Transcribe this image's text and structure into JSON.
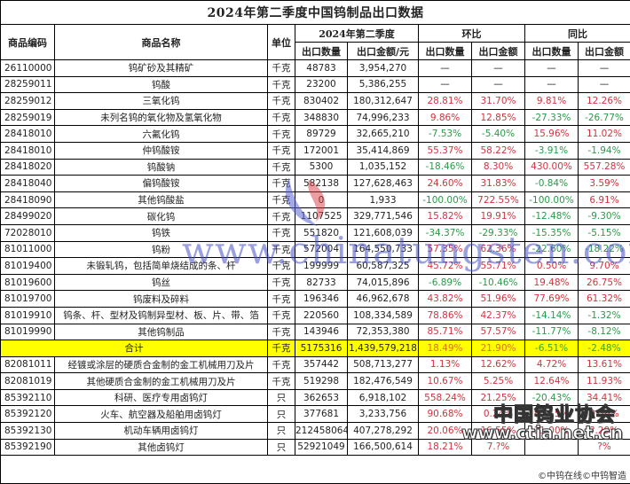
{
  "title": "2024年第二季度中国钨制品出口数据",
  "headers": {
    "code": "商品编码",
    "name": "商品名称",
    "unit": "单位",
    "period": "2024年第二季度",
    "qoq": "环比",
    "yoy": "同比",
    "export_qty": "出口数量",
    "export_amount_yuan": "出口金额/元",
    "export_amount": "出口金额"
  },
  "rows": [
    {
      "code": "26110000",
      "name": "钨矿砂及其精矿",
      "unit": "千克",
      "qty": "48783",
      "amount": "3,954,270",
      "qoq_qty": "—",
      "qoq_amt": "—",
      "yoy_qty": "—",
      "yoy_amt": "—"
    },
    {
      "code": "28259011",
      "name": "钨酸",
      "unit": "千克",
      "qty": "23200",
      "amount": "5,386,255",
      "qoq_qty": "—",
      "qoq_amt": "—",
      "yoy_qty": "—",
      "yoy_amt": "—"
    },
    {
      "code": "28259012",
      "name": "三氧化钨",
      "unit": "千克",
      "qty": "830402",
      "amount": "180,312,647",
      "qoq_qty": "28.81%",
      "qoq_amt": "31.70%",
      "yoy_qty": "9.81%",
      "yoy_amt": "12.26%"
    },
    {
      "code": "28259019",
      "name": "未列名钨的氧化物及氢氧化物",
      "unit": "千克",
      "qty": "348830",
      "amount": "74,996,233",
      "qoq_qty": "9.86%",
      "qoq_amt": "12.85%",
      "yoy_qty": "-27.33%",
      "yoy_amt": "-26.77%"
    },
    {
      "code": "28418010",
      "name": "六氟化钨",
      "unit": "千克",
      "qty": "89729",
      "amount": "32,665,210",
      "qoq_qty": "-7.53%",
      "qoq_amt": "-5.40%",
      "yoy_qty": "15.96%",
      "yoy_amt": "11.02%"
    },
    {
      "code": "28418010",
      "name": "仲钨酸铵",
      "unit": "千克",
      "qty": "172001",
      "amount": "35,414,869",
      "qoq_qty": "55.37%",
      "qoq_amt": "58.22%",
      "yoy_qty": "-3.91%",
      "yoy_amt": "-1.94%"
    },
    {
      "code": "28418020",
      "name": "钨酸钠",
      "unit": "千克",
      "qty": "5300",
      "amount": "1,035,152",
      "qoq_qty": "-18.46%",
      "qoq_amt": "8.30%",
      "yoy_qty": "430.00%",
      "yoy_amt": "557.28%"
    },
    {
      "code": "28418040",
      "name": "偏钨酸铵",
      "unit": "千克",
      "qty": "582138",
      "amount": "127,628,463",
      "qoq_qty": "24.60%",
      "qoq_amt": "31.83%",
      "yoy_qty": "-0.84%",
      "yoy_amt": "3.59%"
    },
    {
      "code": "28418090",
      "name": "其他钨酸盐",
      "unit": "千克",
      "qty": "0",
      "amount": "1,933",
      "qoq_qty": "-100.00%",
      "qoq_amt": "722.55%",
      "yoy_qty": "-100.00%",
      "yoy_amt": "6.91%"
    },
    {
      "code": "28499020",
      "name": "碳化钨",
      "unit": "千克",
      "qty": "1107525",
      "amount": "329,771,546",
      "qoq_qty": "15.82%",
      "qoq_amt": "19.91%",
      "yoy_qty": "-12.48%",
      "yoy_amt": "-9.30%"
    },
    {
      "code": "72028010",
      "name": "钨铁",
      "unit": "千克",
      "qty": "551820",
      "amount": "121,608,039",
      "qoq_qty": "-34.37%",
      "qoq_amt": "-29.33%",
      "yoy_qty": "-15.35%",
      "yoy_amt": "-5.15%"
    },
    {
      "code": "81011000",
      "name": "钨粉",
      "unit": "千克",
      "qty": "572004",
      "amount": "164,550,733",
      "qoq_qty": "57.35%",
      "qoq_amt": "62.36%",
      "yoy_qty": "-22.60%",
      "yoy_amt": "-18.22%"
    },
    {
      "code": "81019400",
      "name": "未锻轧钨，包括简单烧结成的条、杆",
      "unit": "千克",
      "qty": "199999",
      "amount": "60,587,325",
      "qoq_qty": "45.72%",
      "qoq_amt": "55.71%",
      "yoy_qty": "0.50%",
      "yoy_amt": "9.70%"
    },
    {
      "code": "81019600",
      "name": "钨丝",
      "unit": "千克",
      "qty": "82733",
      "amount": "74,015,896",
      "qoq_qty": "-6.89%",
      "qoq_amt": "-10.46%",
      "yoy_qty": "19.48%",
      "yoy_amt": "26.75%"
    },
    {
      "code": "81019700",
      "name": "钨废料及碎料",
      "unit": "千克",
      "qty": "196346",
      "amount": "46,962,678",
      "qoq_qty": "43.82%",
      "qoq_amt": "51.96%",
      "yoy_qty": "77.69%",
      "yoy_amt": "61.32%"
    },
    {
      "code": "81019910",
      "name": "钨条、杆、型材及钨制异型材、板、片、带、箔",
      "unit": "千克",
      "qty": "220560",
      "amount": "108,334,589",
      "qoq_qty": "78.86%",
      "qoq_amt": "42.37%",
      "yoy_qty": "-14.14%",
      "yoy_amt": "-1.32%"
    },
    {
      "code": "81019990",
      "name": "其他钨制品",
      "unit": "千克",
      "qty": "143946",
      "amount": "72,353,380",
      "qoq_qty": "85.71%",
      "qoq_amt": "57.57%",
      "yoy_qty": "-11.77%",
      "yoy_amt": "-8.12%"
    }
  ],
  "total": {
    "label": "合计",
    "unit": "千克",
    "qty": "5175316",
    "amount": "1,439,579,218",
    "qoq_qty": "18.49%",
    "qoq_amt": "21.90%",
    "yoy_qty": "-6.51%",
    "yoy_amt": "-2.48%"
  },
  "rows2": [
    {
      "code": "82081011",
      "name": "经镀或涂层的硬质合金制的金工机械用刀及片",
      "unit": "千克",
      "qty": "357442",
      "amount": "508,713,277",
      "qoq_qty": "1.13%",
      "qoq_amt": "12.62%",
      "yoy_qty": "4.72%",
      "yoy_amt": "13.61%"
    },
    {
      "code": "82081019",
      "name": "其他硬质合金制的金工机械用刀及片",
      "unit": "千克",
      "qty": "519298",
      "amount": "182,476,549",
      "qoq_qty": "10.67%",
      "qoq_amt": "5.25%",
      "yoy_qty": "12.64%",
      "yoy_amt": "11.93%"
    },
    {
      "code": "85392110",
      "name": "科研、医疗专用卤钨灯",
      "unit": "只",
      "qty": "362653",
      "amount": "6,918,102",
      "qoq_qty": "558.24%",
      "qoq_amt": "21.25%",
      "yoy_qty": "-20.43%",
      "yoy_amt": "34.41%"
    },
    {
      "code": "85392120",
      "name": "火车、航空器及船舶用卤钨灯",
      "unit": "只",
      "qty": "377681",
      "amount": "3,233,756",
      "qoq_qty": "90.68%",
      "qoq_amt": "0.24%",
      "yoy_qty": "85.15%",
      "yoy_amt": "0.36%"
    },
    {
      "code": "85392130",
      "name": "机动车辆用卤钨灯",
      "unit": "只",
      "qty": "212458064",
      "amount": "407,278,292",
      "qoq_qty": "20.06%",
      "qoq_amt": "16.55%",
      "yoy_qty": "11.00%",
      "yoy_amt": "?.29%"
    },
    {
      "code": "85392190",
      "name": "其他卤钨灯",
      "unit": "只",
      "qty": "52921049",
      "amount": "166,500,614",
      "qoq_qty": "18.21%",
      "qoq_amt": "7.?%",
      "yoy_qty": "",
      "yoy_amt": "?%"
    }
  ],
  "footer": "©中钨在线©中钨智造",
  "watermarks": {
    "site": "www.chinatungsten.com",
    "assoc": "中国钨业协会",
    "assoc_url": "www.ctia.net.cn"
  },
  "colors": {
    "positive": "#d0343f",
    "negative": "#2a9a4a",
    "total_bg": "#ffff00"
  }
}
